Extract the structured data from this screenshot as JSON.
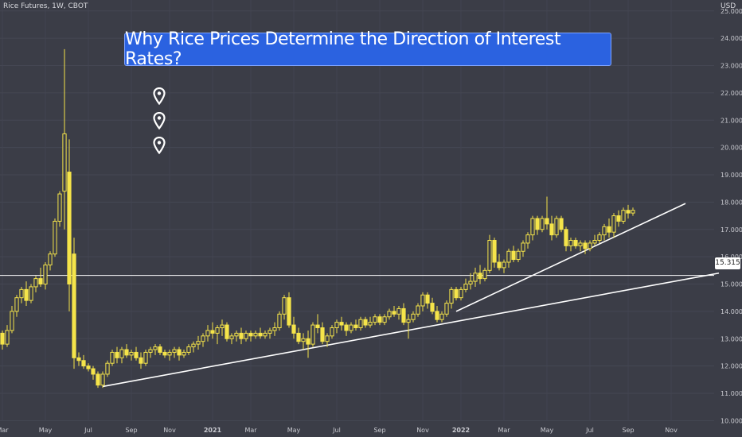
{
  "header": {
    "symbol_text": "Rice Futures, 1W, CBOT",
    "currency": "USD"
  },
  "title": "Why Rice Prices Determine the Direction of Interest Rates?",
  "price_tag": "15.315",
  "markers": [
    {
      "icon": "map-pin-icon"
    },
    {
      "icon": "map-pin-icon"
    },
    {
      "icon": "map-pin-icon"
    }
  ],
  "colors": {
    "background": "#3b3d47",
    "candle": "#f5e44a",
    "trendline": "#ffffff",
    "title_bg": "#2b62e0"
  },
  "chart_data": {
    "type": "candlestick",
    "title": "",
    "xlabel": "",
    "ylabel": "USD",
    "ylim": [
      9.4,
      25.4
    ],
    "y_ticks": [
      "10.000",
      "11.000",
      "12.000",
      "13.000",
      "14.000",
      "15.000",
      "16.000",
      "17.000",
      "18.000",
      "19.000",
      "20.000",
      "21.000",
      "22.000",
      "23.000",
      "24.000",
      "25.000"
    ],
    "x_ticks": [
      {
        "label": "Mar",
        "week": 0
      },
      {
        "label": "May",
        "week": 9
      },
      {
        "label": "Jul",
        "week": 18
      },
      {
        "label": "Sep",
        "week": 27
      },
      {
        "label": "Nov",
        "week": 35
      },
      {
        "label": "2021",
        "week": 44
      },
      {
        "label": "Mar",
        "week": 52
      },
      {
        "label": "May",
        "week": 61
      },
      {
        "label": "Jul",
        "week": 70
      },
      {
        "label": "Sep",
        "week": 79
      },
      {
        "label": "Nov",
        "week": 88
      },
      {
        "label": "2022",
        "week": 96
      },
      {
        "label": "Mar",
        "week": 105
      },
      {
        "label": "May",
        "week": 114
      },
      {
        "label": "Jul",
        "week": 123
      },
      {
        "label": "Sep",
        "week": 131
      },
      {
        "label": "Nov",
        "week": 140
      }
    ],
    "horizontal_line": 15.315,
    "trendlines": [
      {
        "x1": 21,
        "y1": 11.25,
        "x2": 150,
        "y2": 15.4
      },
      {
        "x1": 95,
        "y1": 14.0,
        "x2": 143,
        "y2": 17.95
      }
    ],
    "candles": [
      [
        13.2,
        13.3,
        12.6,
        12.8
      ],
      [
        12.8,
        13.5,
        12.7,
        13.3
      ],
      [
        13.3,
        14.2,
        13.2,
        14.0
      ],
      [
        14.0,
        14.6,
        13.8,
        14.5
      ],
      [
        14.5,
        14.9,
        14.3,
        14.8
      ],
      [
        14.8,
        15.1,
        14.2,
        14.4
      ],
      [
        14.4,
        15.0,
        14.3,
        14.9
      ],
      [
        14.9,
        15.3,
        14.7,
        15.2
      ],
      [
        15.2,
        15.6,
        14.9,
        15.0
      ],
      [
        15.0,
        15.8,
        14.8,
        15.7
      ],
      [
        15.7,
        16.2,
        15.5,
        16.1
      ],
      [
        16.1,
        17.4,
        16.0,
        17.3
      ],
      [
        17.3,
        18.4,
        17.1,
        18.3
      ],
      [
        18.4,
        23.6,
        17.0,
        20.5
      ],
      [
        19.1,
        20.3,
        14.0,
        15.0
      ],
      [
        16.1,
        16.7,
        11.9,
        12.3
      ],
      [
        12.3,
        12.5,
        12.0,
        12.2
      ],
      [
        12.2,
        12.4,
        11.9,
        12.0
      ],
      [
        12.0,
        12.1,
        11.8,
        11.9
      ],
      [
        11.9,
        12.0,
        11.5,
        11.7
      ],
      [
        11.7,
        11.8,
        11.2,
        11.3
      ],
      [
        11.3,
        11.8,
        11.2,
        11.7
      ],
      [
        11.7,
        12.2,
        11.6,
        12.1
      ],
      [
        12.1,
        12.6,
        12.0,
        12.5
      ],
      [
        12.5,
        12.7,
        12.1,
        12.3
      ],
      [
        12.3,
        12.7,
        12.1,
        12.6
      ],
      [
        12.6,
        12.8,
        12.3,
        12.4
      ],
      [
        12.4,
        12.6,
        12.2,
        12.5
      ],
      [
        12.5,
        12.7,
        12.2,
        12.3
      ],
      [
        12.3,
        12.5,
        11.9,
        12.1
      ],
      [
        12.1,
        12.6,
        12.0,
        12.5
      ],
      [
        12.5,
        12.7,
        12.3,
        12.6
      ],
      [
        12.6,
        12.8,
        12.4,
        12.7
      ],
      [
        12.7,
        12.8,
        12.4,
        12.5
      ],
      [
        12.5,
        12.6,
        12.3,
        12.4
      ],
      [
        12.4,
        12.6,
        12.2,
        12.5
      ],
      [
        12.5,
        12.7,
        12.3,
        12.6
      ],
      [
        12.6,
        12.7,
        12.2,
        12.4
      ],
      [
        12.4,
        12.6,
        12.3,
        12.5
      ],
      [
        12.5,
        12.8,
        12.4,
        12.7
      ],
      [
        12.7,
        12.9,
        12.5,
        12.8
      ],
      [
        12.8,
        13.1,
        12.6,
        12.9
      ],
      [
        12.9,
        13.2,
        12.7,
        13.1
      ],
      [
        13.1,
        13.5,
        12.9,
        13.3
      ],
      [
        13.3,
        13.6,
        13.0,
        13.2
      ],
      [
        13.2,
        13.5,
        12.8,
        13.4
      ],
      [
        13.4,
        13.7,
        13.1,
        13.5
      ],
      [
        13.5,
        13.6,
        12.9,
        13.0
      ],
      [
        13.0,
        13.2,
        12.8,
        13.1
      ],
      [
        13.1,
        13.3,
        12.9,
        13.2
      ],
      [
        13.2,
        13.4,
        12.8,
        13.0
      ],
      [
        13.0,
        13.3,
        12.9,
        13.2
      ],
      [
        13.2,
        13.3,
        12.9,
        13.1
      ],
      [
        13.1,
        13.3,
        13.0,
        13.2
      ],
      [
        13.2,
        13.4,
        13.0,
        13.1
      ],
      [
        13.1,
        13.3,
        13.0,
        13.2
      ],
      [
        13.2,
        13.4,
        13.0,
        13.3
      ],
      [
        13.3,
        13.6,
        13.1,
        13.4
      ],
      [
        13.4,
        14.0,
        13.3,
        13.9
      ],
      [
        13.9,
        14.6,
        13.7,
        14.5
      ],
      [
        14.5,
        14.7,
        13.4,
        13.5
      ],
      [
        13.5,
        13.8,
        13.0,
        13.2
      ],
      [
        13.2,
        13.4,
        12.8,
        12.9
      ],
      [
        12.9,
        13.2,
        12.6,
        13.0
      ],
      [
        13.0,
        13.3,
        12.3,
        12.8
      ],
      [
        12.8,
        13.6,
        12.7,
        13.5
      ],
      [
        13.5,
        13.9,
        13.2,
        13.4
      ],
      [
        13.4,
        13.6,
        12.8,
        12.9
      ],
      [
        12.9,
        13.2,
        12.7,
        13.1
      ],
      [
        13.1,
        13.5,
        13.0,
        13.4
      ],
      [
        13.4,
        13.7,
        13.2,
        13.6
      ],
      [
        13.6,
        13.8,
        13.3,
        13.5
      ],
      [
        13.5,
        13.6,
        13.1,
        13.3
      ],
      [
        13.3,
        13.6,
        13.2,
        13.5
      ],
      [
        13.5,
        13.7,
        13.3,
        13.4
      ],
      [
        13.4,
        13.8,
        13.3,
        13.7
      ],
      [
        13.7,
        13.8,
        13.4,
        13.5
      ],
      [
        13.5,
        13.8,
        13.4,
        13.6
      ],
      [
        13.6,
        13.9,
        13.5,
        13.8
      ],
      [
        13.8,
        13.9,
        13.5,
        13.6
      ],
      [
        13.6,
        13.9,
        13.5,
        13.8
      ],
      [
        13.8,
        14.1,
        13.7,
        14.0
      ],
      [
        14.0,
        14.2,
        13.8,
        13.9
      ],
      [
        13.9,
        14.2,
        13.7,
        14.1
      ],
      [
        14.1,
        14.3,
        13.5,
        13.6
      ],
      [
        13.6,
        13.9,
        13.0,
        13.7
      ],
      [
        13.7,
        14.0,
        13.6,
        13.9
      ],
      [
        13.9,
        14.3,
        13.8,
        14.2
      ],
      [
        14.2,
        14.7,
        14.0,
        14.6
      ],
      [
        14.6,
        14.7,
        14.1,
        14.3
      ],
      [
        14.3,
        14.5,
        13.9,
        14.0
      ],
      [
        14.0,
        14.2,
        13.6,
        13.7
      ],
      [
        13.7,
        14.0,
        13.6,
        13.9
      ],
      [
        13.9,
        14.4,
        13.8,
        14.3
      ],
      [
        14.3,
        14.9,
        14.1,
        14.8
      ],
      [
        14.8,
        14.9,
        14.4,
        14.5
      ],
      [
        14.5,
        14.9,
        14.4,
        14.8
      ],
      [
        14.8,
        15.2,
        14.7,
        15.0
      ],
      [
        15.0,
        15.4,
        14.8,
        15.1
      ],
      [
        15.1,
        15.6,
        14.9,
        15.4
      ],
      [
        15.4,
        15.7,
        15.0,
        15.2
      ],
      [
        15.2,
        15.6,
        15.1,
        15.5
      ],
      [
        15.5,
        16.8,
        15.4,
        16.6
      ],
      [
        16.6,
        16.7,
        15.6,
        15.8
      ],
      [
        15.8,
        16.1,
        15.5,
        15.6
      ],
      [
        15.6,
        15.9,
        15.4,
        15.8
      ],
      [
        15.8,
        16.3,
        15.6,
        16.2
      ],
      [
        16.2,
        16.4,
        15.8,
        15.9
      ],
      [
        15.9,
        16.3,
        15.8,
        16.2
      ],
      [
        16.2,
        16.6,
        16.0,
        16.5
      ],
      [
        16.5,
        16.9,
        16.3,
        16.8
      ],
      [
        16.8,
        17.5,
        16.6,
        17.4
      ],
      [
        17.4,
        17.5,
        16.8,
        17.0
      ],
      [
        17.0,
        17.5,
        16.9,
        17.4
      ],
      [
        17.4,
        18.2,
        17.0,
        17.2
      ],
      [
        17.2,
        17.5,
        16.6,
        16.8
      ],
      [
        16.8,
        17.5,
        16.7,
        17.4
      ],
      [
        17.4,
        17.5,
        16.9,
        17.0
      ],
      [
        17.0,
        17.1,
        16.2,
        16.4
      ],
      [
        16.4,
        16.7,
        16.2,
        16.6
      ],
      [
        16.6,
        16.7,
        16.3,
        16.4
      ],
      [
        16.4,
        16.6,
        16.2,
        16.5
      ],
      [
        16.5,
        16.6,
        16.1,
        16.3
      ],
      [
        16.3,
        16.6,
        16.2,
        16.5
      ],
      [
        16.5,
        16.8,
        16.4,
        16.6
      ],
      [
        16.6,
        16.9,
        16.5,
        16.8
      ],
      [
        16.8,
        17.2,
        16.6,
        17.1
      ],
      [
        17.1,
        17.4,
        16.7,
        16.9
      ],
      [
        16.9,
        17.6,
        16.7,
        17.5
      ],
      [
        17.5,
        17.7,
        17.1,
        17.3
      ],
      [
        17.3,
        17.8,
        17.2,
        17.7
      ],
      [
        17.7,
        17.9,
        17.4,
        17.6
      ],
      [
        17.6,
        17.8,
        17.5,
        17.7
      ]
    ]
  }
}
